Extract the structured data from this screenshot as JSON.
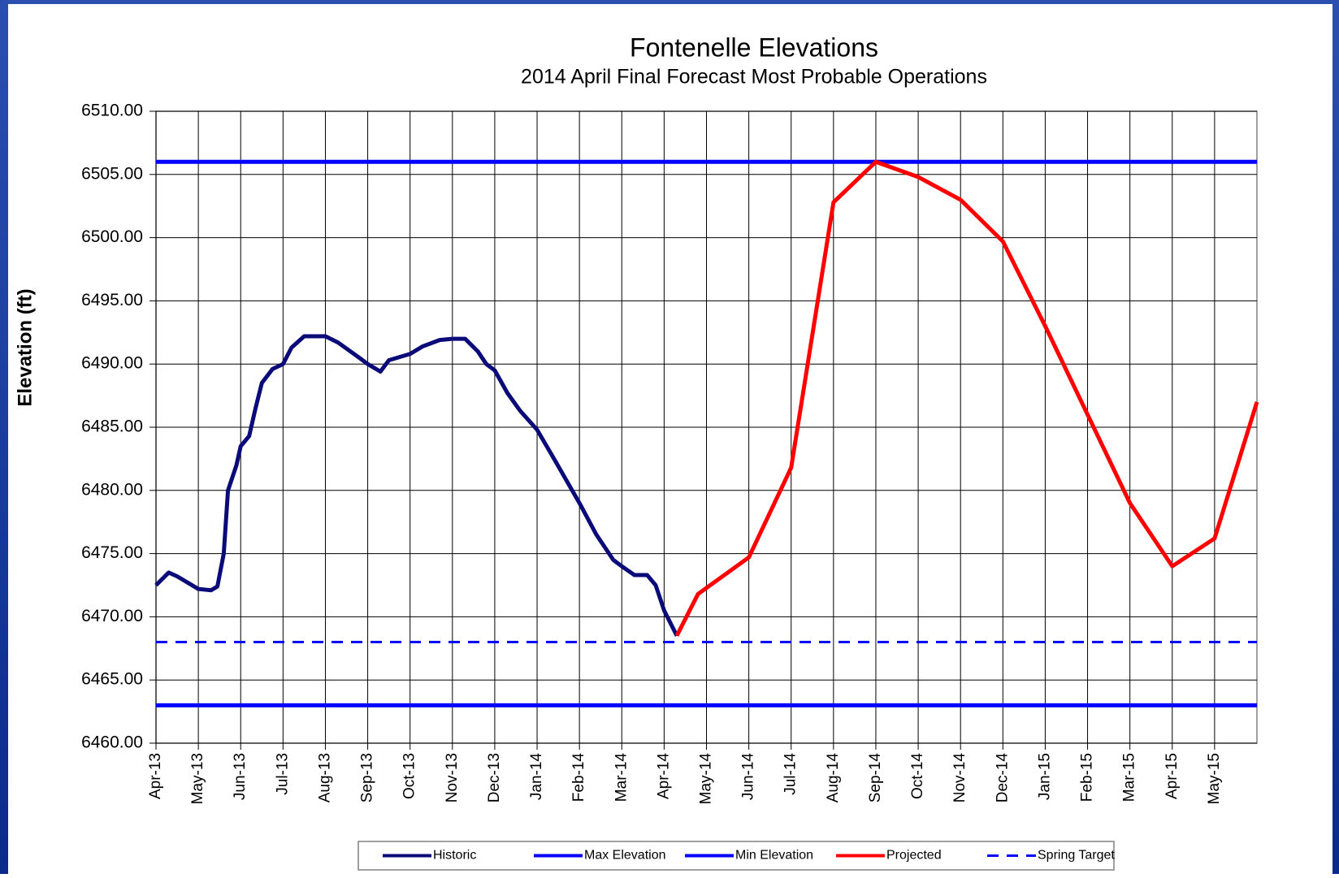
{
  "chart_data": {
    "type": "line",
    "title": "Fontenelle Elevations",
    "subtitle": "2014  April Final Forecast Most Probable Operations",
    "ylabel": "Elevation (ft)",
    "grid": true,
    "legend": "bottom",
    "xlim": [
      0,
      26
    ],
    "xticks": [
      {
        "value": 0,
        "label": "Apr-13"
      },
      {
        "value": 1,
        "label": "May-13"
      },
      {
        "value": 2,
        "label": "Jun-13"
      },
      {
        "value": 3,
        "label": "Jul-13"
      },
      {
        "value": 4,
        "label": "Aug-13"
      },
      {
        "value": 5,
        "label": "Sep-13"
      },
      {
        "value": 6,
        "label": "Oct-13"
      },
      {
        "value": 7,
        "label": "Nov-13"
      },
      {
        "value": 8,
        "label": "Dec-13"
      },
      {
        "value": 9,
        "label": "Jan-14"
      },
      {
        "value": 10,
        "label": "Feb-14"
      },
      {
        "value": 11,
        "label": "Mar-14"
      },
      {
        "value": 12,
        "label": "Apr-14"
      },
      {
        "value": 13,
        "label": "May-14"
      },
      {
        "value": 14,
        "label": "Jun-14"
      },
      {
        "value": 15,
        "label": "Jul-14"
      },
      {
        "value": 16,
        "label": "Aug-14"
      },
      {
        "value": 17,
        "label": "Sep-14"
      },
      {
        "value": 18,
        "label": "Oct-14"
      },
      {
        "value": 19,
        "label": "Nov-14"
      },
      {
        "value": 20,
        "label": "Dec-14"
      },
      {
        "value": 21,
        "label": "Jan-15"
      },
      {
        "value": 22,
        "label": "Feb-15"
      },
      {
        "value": 23,
        "label": "Mar-15"
      },
      {
        "value": 24,
        "label": "Apr-15"
      },
      {
        "value": 25,
        "label": "May-15"
      }
    ],
    "ylim": [
      6460,
      6510
    ],
    "yticks": [
      {
        "value": 6460,
        "label": "6460.00"
      },
      {
        "value": 6465,
        "label": "6465.00"
      },
      {
        "value": 6470,
        "label": "6470.00"
      },
      {
        "value": 6475,
        "label": "6475.00"
      },
      {
        "value": 6480,
        "label": "6480.00"
      },
      {
        "value": 6485,
        "label": "6485.00"
      },
      {
        "value": 6490,
        "label": "6490.00"
      },
      {
        "value": 6495,
        "label": "6495.00"
      },
      {
        "value": 6500,
        "label": "6500.00"
      },
      {
        "value": 6505,
        "label": "6505.00"
      },
      {
        "value": 6510,
        "label": "6510.00"
      }
    ],
    "series": [
      {
        "name": "Historic",
        "color": "#0a0a78",
        "dashed": false,
        "x": [
          0,
          0.3,
          0.5,
          0.8,
          1.0,
          1.3,
          1.45,
          1.6,
          1.7,
          1.9,
          2.0,
          2.2,
          2.35,
          2.5,
          2.75,
          3.0,
          3.2,
          3.5,
          4.0,
          4.3,
          4.8,
          5.0,
          5.3,
          5.5,
          6.0,
          6.3,
          6.7,
          7.0,
          7.3,
          7.6,
          7.8,
          8.0,
          8.3,
          8.6,
          9.0,
          9.4,
          10.0,
          10.4,
          10.8,
          11.0,
          11.3,
          11.6,
          11.8,
          12.0,
          12.3
        ],
        "values": [
          6472.5,
          6473.5,
          6473.2,
          6472.6,
          6472.2,
          6472.1,
          6472.4,
          6475,
          6480,
          6482,
          6483.5,
          6484.3,
          6486.5,
          6488.5,
          6489.6,
          6490,
          6491.3,
          6492.2,
          6492.2,
          6491.7,
          6490.5,
          6490,
          6489.4,
          6490.3,
          6490.8,
          6491.4,
          6491.9,
          6492,
          6492,
          6491,
          6490,
          6489.5,
          6487.7,
          6486.3,
          6484.8,
          6482.5,
          6479,
          6476.5,
          6474.5,
          6474,
          6473.3,
          6473.3,
          6472.5,
          6470.5,
          6468.5
        ]
      },
      {
        "name": "Max Elevation",
        "color": "#0000ff",
        "dashed": false,
        "x": [
          0,
          26
        ],
        "values": [
          6506,
          6506
        ]
      },
      {
        "name": "Min Elevation",
        "color": "#0000ff",
        "dashed": false,
        "x": [
          0,
          26
        ],
        "values": [
          6463,
          6463
        ]
      },
      {
        "name": "Projected",
        "color": "#ff0000",
        "dashed": false,
        "x": [
          12.3,
          12.8,
          14,
          15,
          16,
          17,
          18,
          19,
          20,
          21,
          22,
          23,
          24,
          25,
          26
        ],
        "values": [
          6468.5,
          6471.8,
          6474.7,
          6481.8,
          6502.8,
          6506,
          6504.8,
          6503,
          6499.7,
          6493,
          6486,
          6479,
          6474,
          6476.2,
          6487
        ]
      },
      {
        "name": "Spring Target",
        "color": "#0000ff",
        "dashed": true,
        "x": [
          0,
          26
        ],
        "values": [
          6468,
          6468
        ]
      }
    ]
  }
}
